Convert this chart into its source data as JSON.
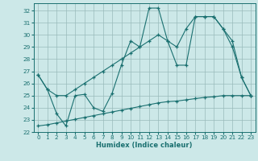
{
  "xlabel": "Humidex (Indice chaleur)",
  "bg_color": "#cce8e8",
  "grid_color": "#99bbbb",
  "line_color": "#1a7070",
  "xlim": [
    -0.5,
    23.5
  ],
  "ylim": [
    22,
    32.6
  ],
  "yticks": [
    22,
    23,
    24,
    25,
    26,
    27,
    28,
    29,
    30,
    31,
    32
  ],
  "xticks": [
    0,
    1,
    2,
    3,
    4,
    5,
    6,
    7,
    8,
    9,
    10,
    11,
    12,
    13,
    14,
    15,
    16,
    17,
    18,
    19,
    20,
    21,
    22,
    23
  ],
  "series1_x": [
    0,
    1,
    2,
    3,
    4,
    5,
    6,
    7,
    8,
    9,
    10,
    11,
    12,
    13,
    14,
    15,
    16,
    17,
    18,
    19,
    20,
    21,
    22,
    23
  ],
  "series1_y": [
    26.7,
    25.5,
    23.5,
    22.5,
    25.0,
    25.1,
    24.0,
    23.7,
    25.2,
    27.5,
    29.5,
    29.0,
    32.2,
    32.2,
    29.5,
    27.5,
    27.5,
    31.5,
    31.5,
    31.5,
    30.5,
    29.0,
    26.5,
    25.0
  ],
  "series2_x": [
    0,
    1,
    2,
    3,
    4,
    5,
    6,
    7,
    8,
    9,
    10,
    11,
    12,
    13,
    14,
    15,
    16,
    17,
    18,
    19,
    20,
    21,
    22,
    23
  ],
  "series2_y": [
    26.7,
    25.5,
    25.0,
    25.0,
    25.5,
    26.0,
    26.5,
    27.0,
    27.5,
    28.0,
    28.5,
    29.0,
    29.5,
    30.0,
    29.5,
    29.0,
    30.5,
    31.5,
    31.5,
    31.5,
    30.5,
    29.5,
    26.5,
    25.0
  ],
  "series3_x": [
    0,
    1,
    2,
    3,
    4,
    5,
    6,
    7,
    8,
    9,
    10,
    11,
    12,
    13,
    14,
    15,
    16,
    17,
    18,
    19,
    20,
    21,
    22,
    23
  ],
  "series3_y": [
    22.5,
    22.6,
    22.75,
    22.9,
    23.05,
    23.2,
    23.35,
    23.5,
    23.65,
    23.8,
    23.95,
    24.1,
    24.25,
    24.4,
    24.5,
    24.55,
    24.65,
    24.75,
    24.85,
    24.9,
    25.0,
    25.0,
    25.0,
    25.0
  ]
}
